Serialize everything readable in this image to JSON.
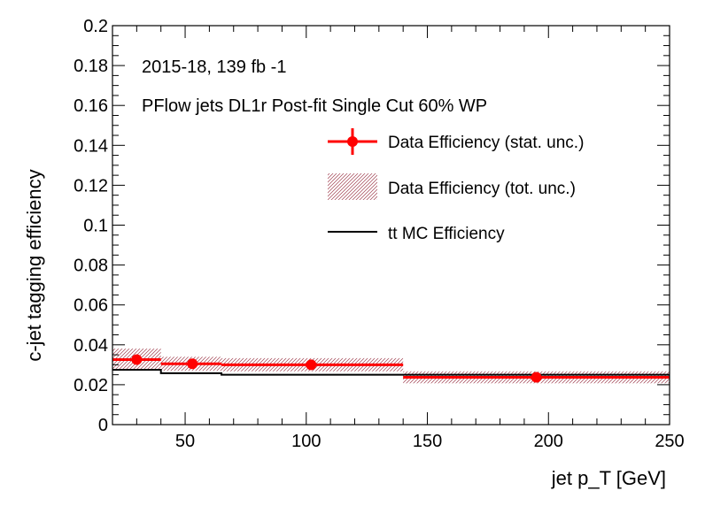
{
  "chart_data": {
    "type": "line",
    "xlabel": "jet p_T [GeV]",
    "ylabel": "c-jet tagging efficiency",
    "xlim": [
      20,
      250
    ],
    "ylim": [
      0,
      0.2
    ],
    "xticks": [
      50,
      100,
      150,
      200,
      250
    ],
    "yticks": [
      0,
      0.02,
      0.04,
      0.06,
      0.08,
      0.1,
      0.12,
      0.14,
      0.16,
      0.18,
      0.2
    ],
    "grid": false,
    "legend_position": "upper-right",
    "annotations": [
      "2015-18, 139 fb -1",
      "PFlow jets DL1r Post-fit Single Cut 60% WP"
    ],
    "legend": [
      "Data Efficiency (stat. unc.)",
      "Data Efficiency (tot. unc.)",
      "tt MC Efficiency"
    ],
    "colors": {
      "data": "#ff0000",
      "band": "#a04050",
      "mc": "#000000"
    },
    "bins": [
      {
        "x_low": 20,
        "x_high": 40,
        "x_center": 30,
        "data": 0.0326,
        "tot_unc": 0.0055,
        "stat_unc": 0.0008,
        "mc": 0.0275
      },
      {
        "x_low": 40,
        "x_high": 65,
        "x_center": 53,
        "data": 0.0305,
        "tot_unc": 0.0035,
        "stat_unc": 0.0006,
        "mc": 0.0258
      },
      {
        "x_low": 65,
        "x_high": 140,
        "x_center": 102,
        "data": 0.03,
        "tot_unc": 0.0033,
        "stat_unc": 0.0005,
        "mc": 0.025
      },
      {
        "x_low": 140,
        "x_high": 250,
        "x_center": 195,
        "data": 0.0237,
        "tot_unc": 0.003,
        "stat_unc": 0.0006,
        "mc": 0.025
      }
    ]
  }
}
